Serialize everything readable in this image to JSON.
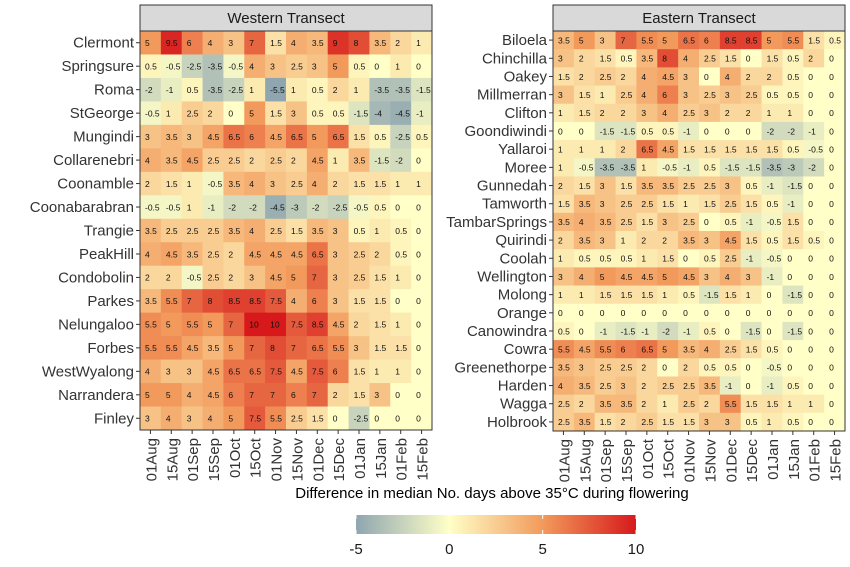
{
  "chart_data": [
    {
      "type": "heatmap",
      "title": "Western Transect",
      "x": [
        "01Aug",
        "15Aug",
        "01Sep",
        "15Sep",
        "01Oct",
        "15Oct",
        "01Nov",
        "15Nov",
        "01Dec",
        "15Dec",
        "01Jan",
        "15Jan",
        "01Feb",
        "15Feb"
      ],
      "y": [
        "Clermont",
        "Springsure",
        "Roma",
        "StGeorge",
        "Mungindi",
        "Collarenebri",
        "Coonamble",
        "Coonabarabran",
        "Trangie",
        "PeakHill",
        "Condobolin",
        "Parkes",
        "Nelungaloo",
        "Forbes",
        "WestWyalong",
        "Narrandera",
        "Finley"
      ],
      "values": [
        [
          "5",
          "9.5",
          "6",
          "4",
          "3",
          "7",
          "1.5",
          "4",
          "3.5",
          "9",
          "8",
          "3.5",
          "2",
          "1"
        ],
        [
          "0.5",
          "-0.5",
          "-2.5",
          "-3.5",
          "-0.5",
          "4",
          "3",
          "2.5",
          "3",
          "5",
          "0.5",
          "0",
          "1",
          "0"
        ],
        [
          "-2",
          "-1",
          "0.5",
          "-3.5",
          "-2.5",
          "1",
          "-5.5",
          "1",
          "0.5",
          "2",
          "1",
          "-3.5",
          "-3.5",
          "-1.5"
        ],
        [
          "-0.5",
          "1",
          "2.5",
          "2",
          "0",
          "5",
          "1.5",
          "3",
          "0.5",
          "0.5",
          "-1.5",
          "-4",
          "-4.5",
          "-1"
        ],
        [
          "3",
          "3.5",
          "3",
          "4.5",
          "6.5",
          "6",
          "4.5",
          "6.5",
          "5",
          "6.5",
          "1.5",
          "0.5",
          "-2.5",
          "0.5"
        ],
        [
          "4",
          "3.5",
          "4.5",
          "2.5",
          "2.5",
          "2",
          "2.5",
          "2",
          "4.5",
          "1",
          "3.5",
          "-1.5",
          "-2",
          "0"
        ],
        [
          "2",
          "1.5",
          "1",
          "-0.5",
          "3.5",
          "4",
          "3",
          "2.5",
          "4",
          "2",
          "1.5",
          "1.5",
          "1",
          "1"
        ],
        [
          "-0.5",
          "-0.5",
          "1",
          "-1",
          "-2",
          "-2",
          "-4.5",
          "-3",
          "-2",
          "-2.5",
          "-0.5",
          "0.5",
          "0",
          "0"
        ],
        [
          "3.5",
          "2.5",
          "2.5",
          "2.5",
          "3.5",
          "4",
          "2.5",
          "1.5",
          "3.5",
          "3",
          "0.5",
          "1",
          "0.5",
          "0"
        ],
        [
          "4",
          "4.5",
          "3.5",
          "2.5",
          "2",
          "4.5",
          "4.5",
          "4.5",
          "6.5",
          "3",
          "2.5",
          "2",
          "0.5",
          "0"
        ],
        [
          "2",
          "2",
          "-0.5",
          "2.5",
          "2",
          "3",
          "4.5",
          "5",
          "7",
          "3",
          "2.5",
          "1.5",
          "1",
          "0"
        ],
        [
          "3.5",
          "5.5",
          "7",
          "8",
          "8.5",
          "8.5",
          "7.5",
          "4",
          "6",
          "3",
          "1.5",
          "1.5",
          "0",
          "0"
        ],
        [
          "5.5",
          "5",
          "5.5",
          "5",
          "7",
          "10",
          "10",
          "7.5",
          "8.5",
          "4.5",
          "2",
          "1.5",
          "1",
          "0"
        ],
        [
          "5.5",
          "5.5",
          "4.5",
          "3.5",
          "5",
          "7",
          "8",
          "7",
          "6.5",
          "5.5",
          "3",
          "1.5",
          "1.5",
          "0"
        ],
        [
          "4",
          "3",
          "3",
          "4.5",
          "6.5",
          "6.5",
          "7.5",
          "4.5",
          "7.5",
          "6",
          "1.5",
          "1",
          "1",
          "0"
        ],
        [
          "5",
          "5",
          "4",
          "4.5",
          "6",
          "7",
          "7",
          "6",
          "7",
          "2",
          "1.5",
          "3",
          "0",
          "0"
        ],
        [
          "3",
          "4",
          "3",
          "4",
          "5",
          "7.5",
          "5.5",
          "2.5",
          "1.5",
          "0",
          "-2.5",
          "0",
          "0",
          "0"
        ]
      ]
    },
    {
      "type": "heatmap",
      "title": "Eastern Transect",
      "x": [
        "01Aug",
        "15Aug",
        "01Sep",
        "15Sep",
        "01Oct",
        "15Oct",
        "01Nov",
        "15Nov",
        "01Dec",
        "15Dec",
        "01Jan",
        "15Jan",
        "01Feb",
        "15Feb"
      ],
      "y": [
        "Biloela",
        "Chinchilla",
        "Oakey",
        "Millmerran",
        "Clifton",
        "Goondiwindi",
        "Yallaroi",
        "Moree",
        "Gunnedah",
        "Tamworth",
        "TambarSprings",
        "Quirindi",
        "Coolah",
        "Wellington",
        "Molong",
        "Orange",
        "Canowindra",
        "Cowra",
        "Greenethorpe",
        "Harden",
        "Wagga",
        "Holbrook"
      ],
      "values": [
        [
          "3.5",
          "5",
          "3",
          "7",
          "5.5",
          "5",
          "6.5",
          "6",
          "8.5",
          "8.5",
          "5",
          "5.5",
          "1.5",
          "0.5"
        ],
        [
          "3",
          "2",
          "1.5",
          "0.5",
          "3.5",
          "8",
          "4",
          "2.5",
          "1.5",
          "0",
          "1.5",
          "0.5",
          "2",
          "0"
        ],
        [
          "1.5",
          "2",
          "2.5",
          "2",
          "4",
          "4.5",
          "3",
          "0",
          "4",
          "2",
          "2",
          "0.5",
          "0",
          "0"
        ],
        [
          "3",
          "1.5",
          "1",
          "2.5",
          "4",
          "6",
          "3",
          "2.5",
          "3",
          "2.5",
          "0.5",
          "0.5",
          "0",
          "0"
        ],
        [
          "1",
          "1.5",
          "2",
          "2",
          "3",
          "4",
          "2.5",
          "3",
          "2",
          "2",
          "1",
          "1",
          "0",
          "0"
        ],
        [
          "0",
          "0",
          "-1.5",
          "-1.5",
          "0.5",
          "0.5",
          "-1",
          "0",
          "0",
          "0",
          "-2",
          "-2",
          "-1",
          "0"
        ],
        [
          "1",
          "1",
          "1",
          "2",
          "6.5",
          "4.5",
          "1.5",
          "1.5",
          "1.5",
          "1.5",
          "1.5",
          "0.5",
          "-0.5",
          "0"
        ],
        [
          "1",
          "-0.5",
          "-3.5",
          "-3.5",
          "1",
          "-0.5",
          "-1",
          "0.5",
          "-1.5",
          "-1.5",
          "-3.5",
          "-3",
          "-2",
          "0"
        ],
        [
          "2",
          "1.5",
          "3",
          "1.5",
          "3.5",
          "3.5",
          "2.5",
          "2.5",
          "3",
          "0.5",
          "-1",
          "-1.5",
          "0",
          "0"
        ],
        [
          "1.5",
          "3.5",
          "3",
          "2.5",
          "2.5",
          "1.5",
          "1",
          "1.5",
          "2.5",
          "1.5",
          "0.5",
          "-1",
          "0",
          "0"
        ],
        [
          "3.5",
          "4",
          "3.5",
          "2.5",
          "1.5",
          "3",
          "2.5",
          "0",
          "0.5",
          "-1",
          "-0.5",
          "1.5",
          "0",
          "0"
        ],
        [
          "2",
          "3.5",
          "3",
          "1",
          "2",
          "2",
          "3.5",
          "3",
          "4.5",
          "1.5",
          "0.5",
          "1.5",
          "0.5",
          "0"
        ],
        [
          "1",
          "0.5",
          "0.5",
          "0.5",
          "1",
          "1.5",
          "0",
          "0.5",
          "2.5",
          "-1",
          "-0.5",
          "0",
          "0",
          "0"
        ],
        [
          "3",
          "4",
          "5",
          "4.5",
          "4.5",
          "5",
          "4.5",
          "3",
          "4",
          "3",
          "-1",
          "0",
          "0",
          "0"
        ],
        [
          "1",
          "1",
          "1.5",
          "1.5",
          "1.5",
          "1",
          "0.5",
          "-1.5",
          "1.5",
          "1",
          "0",
          "-1.5",
          "0",
          "0"
        ],
        [
          "0",
          "0",
          "0",
          "0",
          "0",
          "0",
          "0",
          "0",
          "0",
          "0",
          "0",
          "0",
          "0",
          "0"
        ],
        [
          "0.5",
          "0",
          "-1",
          "-1.5",
          "-1",
          "-2",
          "-1",
          "0.5",
          "0",
          "-1.5",
          "0",
          "-1.5",
          "0",
          "0"
        ],
        [
          "5.5",
          "4.5",
          "5.5",
          "6",
          "6.5",
          "5",
          "3.5",
          "4",
          "2.5",
          "1.5",
          "0.5",
          "0",
          "0",
          "0"
        ],
        [
          "3.5",
          "3",
          "2.5",
          "2.5",
          "2",
          "0",
          "2",
          "0.5",
          "0.5",
          "0",
          "-0.5",
          "0",
          "0",
          "0"
        ],
        [
          "4",
          "3.5",
          "2.5",
          "3",
          "2",
          "2.5",
          "2.5",
          "3.5",
          "-1",
          "0",
          "-1",
          "0.5",
          "0",
          "0"
        ],
        [
          "2.5",
          "2",
          "3.5",
          "3.5",
          "2",
          "1",
          "2.5",
          "2",
          "5.5",
          "1.5",
          "1.5",
          "1",
          "1",
          "0"
        ],
        [
          "2.5",
          "3.5",
          "1.5",
          "2",
          "2.5",
          "1.5",
          "1.5",
          "3",
          "3",
          "0.5",
          "1",
          "0.5",
          "0",
          "0"
        ]
      ]
    }
  ],
  "xlabel": "Difference in median No. days above 35°C during flowering",
  "colorbar": {
    "ticks": [
      "-5",
      "0",
      "5",
      "10"
    ],
    "range": [
      -5,
      10
    ],
    "colors": [
      "#8fa6b0",
      "#ffffc7",
      "#f29a5b",
      "#d7191c"
    ]
  },
  "strip_color": "#d9d9d9",
  "grid": true
}
